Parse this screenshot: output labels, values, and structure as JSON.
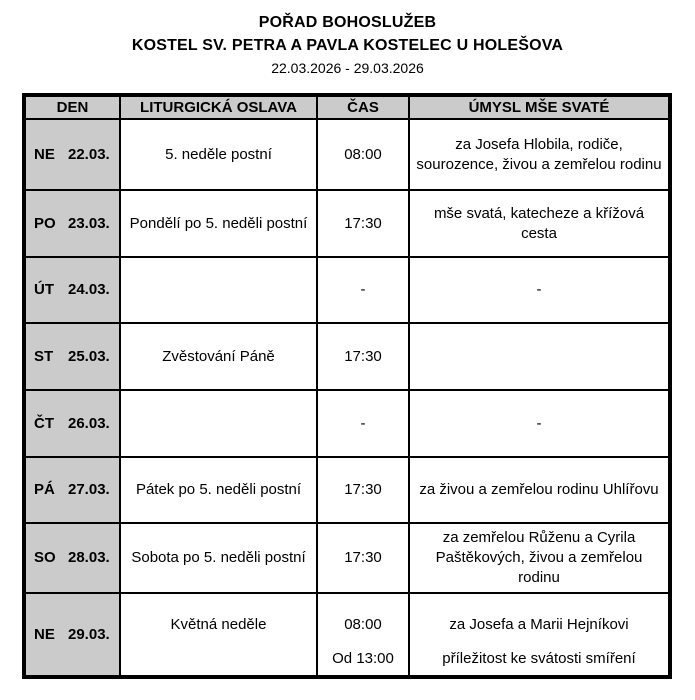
{
  "header": {
    "title": "POŘAD BOHOSLUŽEB",
    "church": "KOSTEL SV. PETRA A PAVLA KOSTELEC U HOLEŠOVA",
    "date_range": "22.03.2026 - 29.03.2026"
  },
  "table": {
    "columns": [
      "DEN",
      "LITURGICKÁ OSLAVA",
      "ČAS",
      "ÚMYSL MŠE SVATÉ"
    ],
    "rows": [
      {
        "day": "NE",
        "date": "22.03.",
        "celebration": "5. neděle postní",
        "time": "08:00",
        "intention": "za Josefa Hlobila, rodiče, sourozence, živou a zemřelou rodinu"
      },
      {
        "day": "PO",
        "date": "23.03.",
        "celebration": "Pondělí po 5. neděli postní",
        "time": "17:30",
        "intention": "mše svatá, katecheze a křížová cesta"
      },
      {
        "day": "ÚT",
        "date": "24.03.",
        "celebration": "",
        "time": "-",
        "intention": "-"
      },
      {
        "day": "ST",
        "date": "25.03.",
        "celebration": "Zvěstování Páně",
        "time": "17:30",
        "intention": ""
      },
      {
        "day": "ČT",
        "date": "26.03.",
        "celebration": "",
        "time": "-",
        "intention": "-"
      },
      {
        "day": "PÁ",
        "date": "27.03.",
        "celebration": "Pátek po 5. neděli postní",
        "time": "17:30",
        "intention": "za živou a zemřelou rodinu Uhlířovu"
      },
      {
        "day": "SO",
        "date": "28.03.",
        "celebration": "Sobota po 5. neděli postní",
        "time": "17:30",
        "intention": "za zemřelou Růženu a Cyrila Paštěkových, živou a zemřelou rodinu"
      },
      {
        "day": "NE",
        "date": "29.03.",
        "celebration": "Květná neděle",
        "times": [
          "08:00",
          "Od 13:00"
        ],
        "intentions": [
          "za Josefa a Marii Hejníkovi",
          "příležitost ke svátosti smíření"
        ]
      }
    ]
  },
  "colors": {
    "header_bg": "#cbcbcb",
    "day_bg": "#cbcbcb",
    "border": "#000000"
  }
}
